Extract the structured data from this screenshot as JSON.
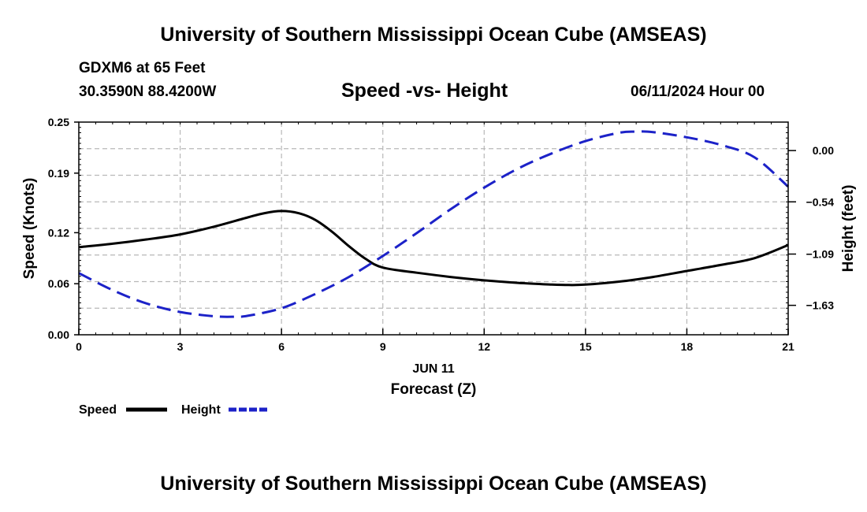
{
  "page": {
    "top_title": "University of Southern Mississippi Ocean Cube (AMSEAS)",
    "bottom_title": "University of Southern Mississippi Ocean Cube (AMSEAS)",
    "station": "GDXM6 at 65 Feet",
    "coords": "30.3590N  88.4200W",
    "datetime": "06/11/2024 Hour 00"
  },
  "chart_data": {
    "type": "line",
    "title": "Speed -vs- Height",
    "xlabel": "Forecast (Z)",
    "xlabel_date": "JUN 11",
    "ylabel_left": "Speed (Knots)",
    "ylabel_right": "Height (feet)",
    "xlim": [
      0,
      21
    ],
    "ylim_left": [
      0.0,
      0.25
    ],
    "ylim_right": [
      -1.94,
      0.3
    ],
    "x_ticks": [
      0,
      3,
      6,
      9,
      12,
      15,
      18,
      21
    ],
    "x_tick_labels": [
      "0",
      "3",
      "6",
      "9",
      "12",
      "15",
      "18",
      "21"
    ],
    "left_ticks": [
      0.0,
      0.06,
      0.12,
      0.19,
      0.25
    ],
    "left_tick_labels": [
      "0.00",
      "0.06",
      "0.12",
      "0.19",
      "0.25"
    ],
    "right_ticks": [
      0.0,
      -0.54,
      -1.09,
      -1.63
    ],
    "right_tick_labels": [
      "0.00",
      "−0.54",
      "−1.09",
      "−1.63"
    ],
    "grid": true,
    "series": [
      {
        "name": "Speed",
        "axis": "left",
        "color": "#000000",
        "dash": "solid",
        "x": [
          0,
          1,
          2,
          3,
          4,
          5,
          5.5,
          6,
          6.5,
          7,
          7.5,
          8,
          8.5,
          9,
          10,
          11,
          12,
          13,
          14,
          14.5,
          15,
          16,
          17,
          18,
          19,
          20,
          21
        ],
        "values": [
          0.103,
          0.107,
          0.112,
          0.118,
          0.127,
          0.138,
          0.143,
          0.1455,
          0.143,
          0.135,
          0.121,
          0.104,
          0.089,
          0.079,
          0.073,
          0.068,
          0.064,
          0.061,
          0.059,
          0.0585,
          0.059,
          0.0625,
          0.068,
          0.075,
          0.082,
          0.09,
          0.1055
        ]
      },
      {
        "name": "Height",
        "axis": "right",
        "color": "#1c22c8",
        "dash": "dashed",
        "x": [
          0,
          1,
          2,
          3,
          4,
          4.6,
          5,
          6,
          7,
          8,
          9,
          10,
          11,
          12,
          13,
          14,
          15,
          16,
          16.5,
          17,
          18,
          19,
          20,
          21
        ],
        "values": [
          -1.29,
          -1.47,
          -1.61,
          -1.7,
          -1.745,
          -1.75,
          -1.74,
          -1.66,
          -1.51,
          -1.33,
          -1.11,
          -0.87,
          -0.62,
          -0.39,
          -0.19,
          -0.03,
          0.1,
          0.188,
          0.2,
          0.195,
          0.14,
          0.06,
          -0.07,
          -0.38
        ]
      }
    ],
    "legend": [
      {
        "label": "Speed",
        "color": "#000000",
        "dash": "solid"
      },
      {
        "label": "Height",
        "color": "#1c22c8",
        "dash": "dashed"
      }
    ],
    "legend_position": "bottom-left"
  }
}
